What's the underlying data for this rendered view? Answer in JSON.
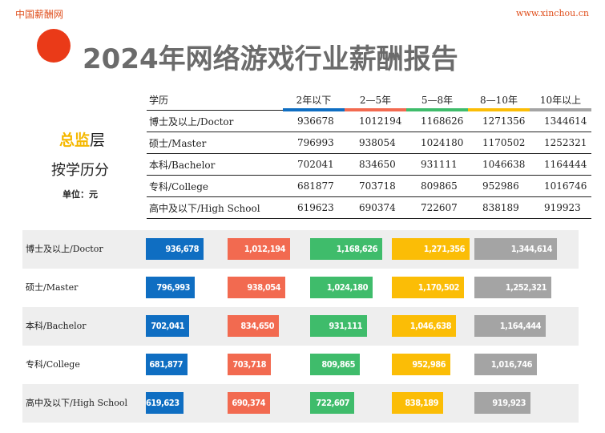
{
  "header": {
    "brand": "中国薪酬网",
    "url": "www.xinchou.cn"
  },
  "title": "2024年网络游戏行业薪酬报告",
  "side": {
    "highlight": "总监",
    "rest": "层",
    "line2": "按学历分",
    "unit": "单位：元"
  },
  "colors": {
    "s1": "#0f6ec2",
    "s2": "#f26a50",
    "s3": "#3fbc6b",
    "s4": "#fbbd06",
    "s5": "#a4a4a4"
  },
  "chart_data": {
    "type": "bar",
    "title": "",
    "categories": [
      "博士及以上/Doctor",
      "硕士/Master",
      "本科/Bachelor",
      "专科/College",
      "高中及以下/High School"
    ],
    "category_header": "学历",
    "series": [
      {
        "name": "2年以下",
        "values": [
          936678,
          796993,
          702041,
          681877,
          619623
        ],
        "labels": [
          "936,678",
          "796,993",
          "702,041",
          "681,877",
          "619,623"
        ]
      },
      {
        "name": "2—5年",
        "values": [
          1012194,
          938054,
          834650,
          703718,
          690374
        ],
        "labels": [
          "1,012,194",
          "938,054",
          "834,650",
          "703,718",
          "690,374"
        ]
      },
      {
        "name": "5—8年",
        "values": [
          1168626,
          1024180,
          931111,
          809865,
          722607
        ],
        "labels": [
          "1,168,626",
          "1,024,180",
          "931,111",
          "809,865",
          "722,607"
        ]
      },
      {
        "name": "8—10年",
        "values": [
          1271356,
          1170502,
          1046638,
          952986,
          838189
        ],
        "labels": [
          "1,271,356",
          "1,170,502",
          "1,046,638",
          "952,986",
          "838,189"
        ]
      },
      {
        "name": "10年以上",
        "values": [
          1344614,
          1252321,
          1164444,
          1016746,
          919923
        ],
        "labels": [
          "1,344,614",
          "1,252,321",
          "1,164,444",
          "1,016,746",
          "919,923"
        ]
      }
    ]
  }
}
